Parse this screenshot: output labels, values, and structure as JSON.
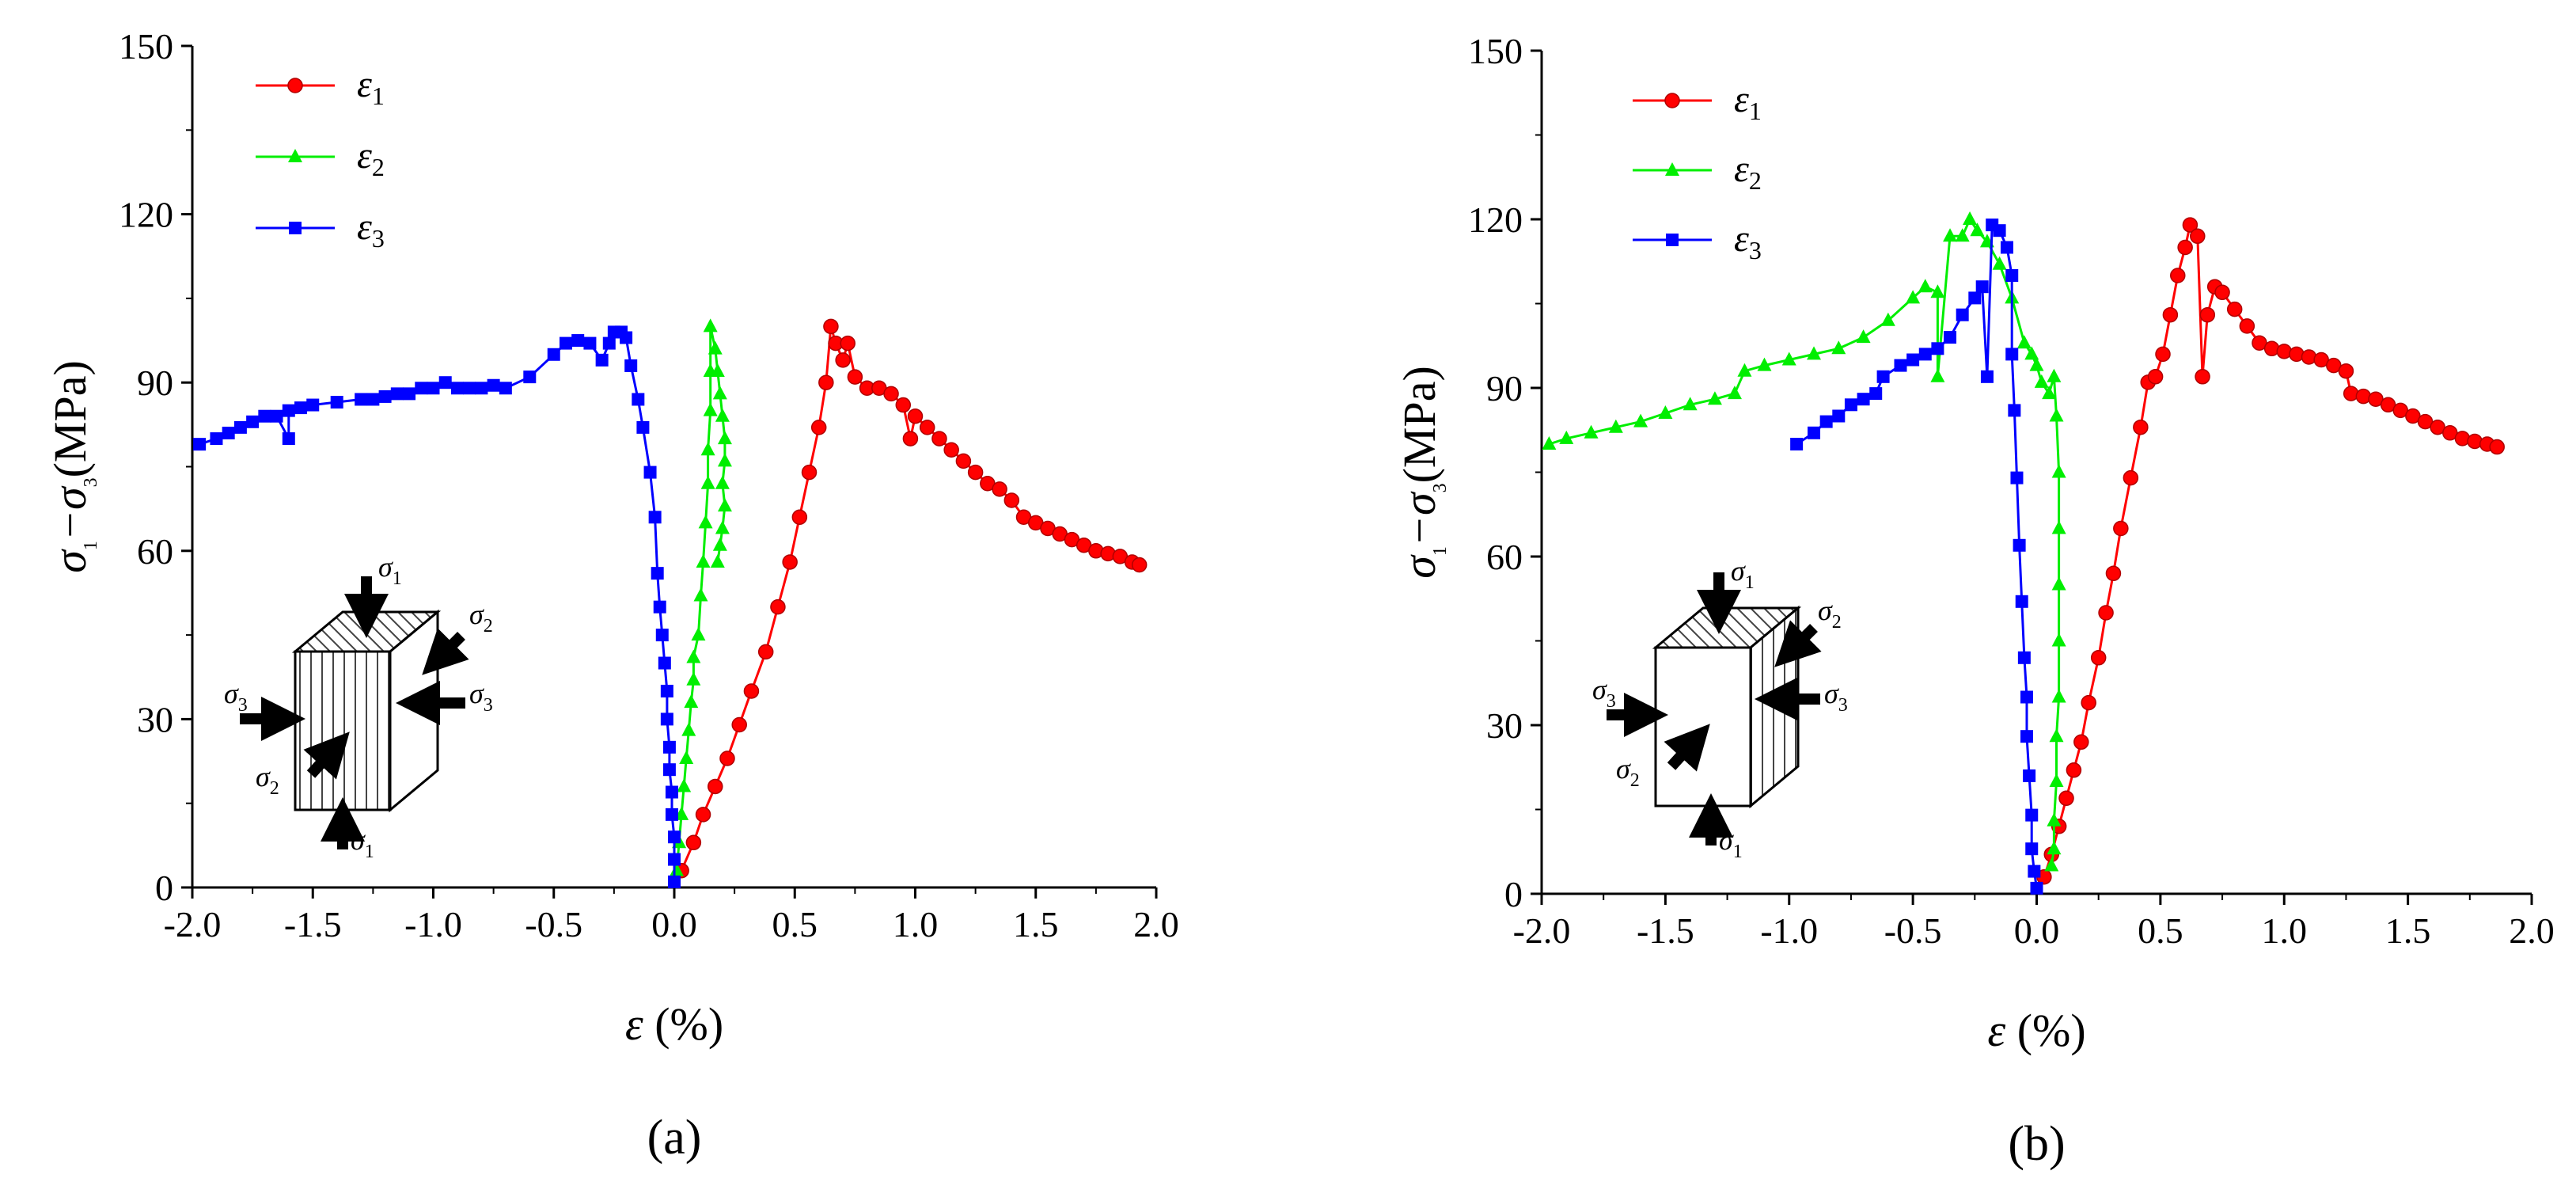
{
  "chart_data": [
    {
      "type": "line",
      "panel_label": "(a)",
      "xlabel_symbol": "ε",
      "xlabel_unit": "(%)",
      "ylabel_parts": [
        "σ",
        "1",
        "−σ",
        "3",
        "(MPa)"
      ],
      "xlim": [
        -2.0,
        2.0
      ],
      "ylim": [
        0,
        150
      ],
      "xticks": [
        "-2.0",
        "-1.5",
        "-1.0",
        "-0.5",
        "0.0",
        "0.5",
        "1.0",
        "1.5",
        "2.0"
      ],
      "yticks": [
        "0",
        "30",
        "60",
        "90",
        "120",
        "150"
      ],
      "legend": [
        {
          "name": "ε",
          "sub": "1",
          "color": "#ff0000",
          "marker": "circle"
        },
        {
          "name": "ε",
          "sub": "2",
          "color": "#00ee00",
          "marker": "triangle"
        },
        {
          "name": "ε",
          "sub": "3",
          "color": "#0000ff",
          "marker": "square"
        }
      ],
      "stress_labels": {
        "s1": "σ",
        "s2": "σ",
        "s3": "σ",
        "sub1": "1",
        "sub2": "2",
        "sub3": "3"
      },
      "series": [
        {
          "name": "ε1",
          "color": "#ff0000",
          "marker": "circle",
          "points": [
            [
              0.03,
              3
            ],
            [
              0.08,
              8
            ],
            [
              0.12,
              13
            ],
            [
              0.17,
              18
            ],
            [
              0.22,
              23
            ],
            [
              0.27,
              29
            ],
            [
              0.32,
              35
            ],
            [
              0.38,
              42
            ],
            [
              0.43,
              50
            ],
            [
              0.48,
              58
            ],
            [
              0.52,
              66
            ],
            [
              0.56,
              74
            ],
            [
              0.6,
              82
            ],
            [
              0.63,
              90
            ],
            [
              0.65,
              100
            ],
            [
              0.67,
              97
            ],
            [
              0.7,
              94
            ],
            [
              0.72,
              97
            ],
            [
              0.75,
              91
            ],
            [
              0.8,
              89
            ],
            [
              0.85,
              89
            ],
            [
              0.9,
              88
            ],
            [
              0.95,
              86
            ],
            [
              0.98,
              80
            ],
            [
              1.0,
              84
            ],
            [
              1.05,
              82
            ],
            [
              1.1,
              80
            ],
            [
              1.15,
              78
            ],
            [
              1.2,
              76
            ],
            [
              1.25,
              74
            ],
            [
              1.3,
              72
            ],
            [
              1.35,
              71
            ],
            [
              1.4,
              69
            ],
            [
              1.45,
              66
            ],
            [
              1.5,
              65
            ],
            [
              1.55,
              64
            ],
            [
              1.6,
              63
            ],
            [
              1.65,
              62
            ],
            [
              1.7,
              61
            ],
            [
              1.75,
              60
            ],
            [
              1.8,
              59.5
            ],
            [
              1.85,
              59
            ],
            [
              1.9,
              58
            ],
            [
              1.93,
              57.5
            ]
          ]
        },
        {
          "name": "ε2",
          "color": "#00ee00",
          "marker": "triangle",
          "points": [
            [
              0.01,
              3
            ],
            [
              0.02,
              8
            ],
            [
              0.03,
              13
            ],
            [
              0.04,
              18
            ],
            [
              0.05,
              23
            ],
            [
              0.06,
              28
            ],
            [
              0.07,
              33
            ],
            [
              0.08,
              37
            ],
            [
              0.08,
              41
            ],
            [
              0.1,
              45
            ],
            [
              0.11,
              52
            ],
            [
              0.12,
              58
            ],
            [
              0.13,
              65
            ],
            [
              0.14,
              72
            ],
            [
              0.14,
              78
            ],
            [
              0.15,
              85
            ],
            [
              0.15,
              92
            ],
            [
              0.15,
              100
            ],
            [
              0.17,
              96
            ],
            [
              0.18,
              92
            ],
            [
              0.19,
              88
            ],
            [
              0.2,
              84
            ],
            [
              0.21,
              80
            ],
            [
              0.21,
              76
            ],
            [
              0.2,
              72
            ],
            [
              0.21,
              68
            ],
            [
              0.2,
              64
            ],
            [
              0.19,
              61
            ],
            [
              0.18,
              58
            ]
          ]
        },
        {
          "name": "ε3",
          "color": "#0000ff",
          "marker": "square",
          "points": [
            [
              -1.97,
              79
            ],
            [
              -1.9,
              80
            ],
            [
              -1.85,
              81
            ],
            [
              -1.8,
              82
            ],
            [
              -1.75,
              83
            ],
            [
              -1.7,
              84
            ],
            [
              -1.65,
              84
            ],
            [
              -1.6,
              80
            ],
            [
              -1.6,
              85
            ],
            [
              -1.55,
              85.5
            ],
            [
              -1.5,
              86
            ],
            [
              -1.4,
              86.5
            ],
            [
              -1.3,
              87
            ],
            [
              -1.25,
              87
            ],
            [
              -1.2,
              87.5
            ],
            [
              -1.15,
              88
            ],
            [
              -1.1,
              88
            ],
            [
              -1.05,
              89
            ],
            [
              -1.0,
              89
            ],
            [
              -0.95,
              90
            ],
            [
              -0.9,
              89
            ],
            [
              -0.85,
              89
            ],
            [
              -0.8,
              89
            ],
            [
              -0.75,
              89.5
            ],
            [
              -0.7,
              89
            ],
            [
              -0.6,
              91
            ],
            [
              -0.5,
              95
            ],
            [
              -0.45,
              97
            ],
            [
              -0.4,
              97.5
            ],
            [
              -0.35,
              97
            ],
            [
              -0.3,
              94
            ],
            [
              -0.27,
              97
            ],
            [
              -0.25,
              99
            ],
            [
              -0.22,
              99
            ],
            [
              -0.2,
              98
            ],
            [
              -0.18,
              93
            ],
            [
              -0.15,
              87
            ],
            [
              -0.13,
              82
            ],
            [
              -0.1,
              74
            ],
            [
              -0.08,
              66
            ],
            [
              -0.07,
              56
            ],
            [
              -0.06,
              50
            ],
            [
              -0.05,
              45
            ],
            [
              -0.04,
              40
            ],
            [
              -0.03,
              35
            ],
            [
              -0.03,
              30
            ],
            [
              -0.02,
              25
            ],
            [
              -0.02,
              21
            ],
            [
              -0.01,
              17
            ],
            [
              -0.01,
              13
            ],
            [
              0.0,
              9
            ],
            [
              0.0,
              5
            ],
            [
              0.0,
              1
            ]
          ]
        }
      ]
    },
    {
      "type": "line",
      "panel_label": "(b)",
      "xlabel_symbol": "ε",
      "xlabel_unit": "(%)",
      "ylabel_parts": [
        "σ",
        "1",
        "−σ",
        "3",
        "(MPa)"
      ],
      "xlim": [
        -2.0,
        2.0
      ],
      "ylim": [
        0,
        150
      ],
      "xticks": [
        "-2.0",
        "-1.5",
        "-1.0",
        "-0.5",
        "0.0",
        "0.5",
        "1.0",
        "1.5",
        "2.0"
      ],
      "yticks": [
        "0",
        "30",
        "60",
        "90",
        "120",
        "150"
      ],
      "legend": [
        {
          "name": "ε",
          "sub": "1",
          "color": "#ff0000",
          "marker": "circle"
        },
        {
          "name": "ε",
          "sub": "2",
          "color": "#00ee00",
          "marker": "triangle"
        },
        {
          "name": "ε",
          "sub": "3",
          "color": "#0000ff",
          "marker": "square"
        }
      ],
      "stress_labels": {
        "s1": "σ",
        "s2": "σ",
        "s3": "σ",
        "sub1": "1",
        "sub2": "2",
        "sub3": "3"
      },
      "series": [
        {
          "name": "ε1",
          "color": "#ff0000",
          "marker": "circle",
          "points": [
            [
              0.03,
              3
            ],
            [
              0.06,
              7
            ],
            [
              0.09,
              12
            ],
            [
              0.12,
              17
            ],
            [
              0.15,
              22
            ],
            [
              0.18,
              27
            ],
            [
              0.21,
              34
            ],
            [
              0.25,
              42
            ],
            [
              0.28,
              50
            ],
            [
              0.31,
              57
            ],
            [
              0.34,
              65
            ],
            [
              0.38,
              74
            ],
            [
              0.42,
              83
            ],
            [
              0.45,
              91
            ],
            [
              0.48,
              92
            ],
            [
              0.51,
              96
            ],
            [
              0.54,
              103
            ],
            [
              0.57,
              110
            ],
            [
              0.6,
              115
            ],
            [
              0.62,
              119
            ],
            [
              0.65,
              117
            ],
            [
              0.67,
              92
            ],
            [
              0.69,
              103
            ],
            [
              0.72,
              108
            ],
            [
              0.75,
              107
            ],
            [
              0.8,
              104
            ],
            [
              0.85,
              101
            ],
            [
              0.9,
              98
            ],
            [
              0.95,
              97
            ],
            [
              1.0,
              96.5
            ],
            [
              1.05,
              96
            ],
            [
              1.1,
              95.5
            ],
            [
              1.15,
              95
            ],
            [
              1.2,
              94
            ],
            [
              1.25,
              93
            ],
            [
              1.27,
              89
            ],
            [
              1.32,
              88.5
            ],
            [
              1.37,
              88
            ],
            [
              1.42,
              87
            ],
            [
              1.47,
              86
            ],
            [
              1.52,
              85
            ],
            [
              1.57,
              84
            ],
            [
              1.62,
              83
            ],
            [
              1.67,
              82
            ],
            [
              1.72,
              81
            ],
            [
              1.77,
              80.5
            ],
            [
              1.82,
              80
            ],
            [
              1.86,
              79.5
            ]
          ]
        },
        {
          "name": "ε2",
          "color": "#00ee00",
          "marker": "triangle",
          "points": [
            [
              -1.97,
              80
            ],
            [
              -1.9,
              81
            ],
            [
              -1.8,
              82
            ],
            [
              -1.7,
              83
            ],
            [
              -1.6,
              84
            ],
            [
              -1.5,
              85.5
            ],
            [
              -1.4,
              87
            ],
            [
              -1.3,
              88
            ],
            [
              -1.22,
              89
            ],
            [
              -1.18,
              93
            ],
            [
              -1.1,
              94
            ],
            [
              -1.0,
              95
            ],
            [
              -0.9,
              96
            ],
            [
              -0.8,
              97
            ],
            [
              -0.7,
              99
            ],
            [
              -0.6,
              102
            ],
            [
              -0.5,
              106
            ],
            [
              -0.45,
              108
            ],
            [
              -0.4,
              107
            ],
            [
              -0.4,
              92
            ],
            [
              -0.35,
              117
            ],
            [
              -0.3,
              117
            ],
            [
              -0.27,
              120
            ],
            [
              -0.24,
              118
            ],
            [
              -0.2,
              116
            ],
            [
              -0.15,
              112
            ],
            [
              -0.1,
              106
            ],
            [
              -0.05,
              98
            ],
            [
              -0.02,
              96
            ],
            [
              0.0,
              94
            ],
            [
              0.02,
              91
            ],
            [
              0.05,
              89
            ],
            [
              0.07,
              92
            ],
            [
              0.08,
              85
            ],
            [
              0.09,
              75
            ],
            [
              0.09,
              65
            ],
            [
              0.09,
              55
            ],
            [
              0.09,
              45
            ],
            [
              0.09,
              35
            ],
            [
              0.08,
              28
            ],
            [
              0.08,
              20
            ],
            [
              0.07,
              13
            ],
            [
              0.07,
              8
            ],
            [
              0.06,
              5
            ]
          ]
        },
        {
          "name": "ε3",
          "color": "#0000ff",
          "marker": "square",
          "points": [
            [
              -0.97,
              80
            ],
            [
              -0.9,
              82
            ],
            [
              -0.85,
              84
            ],
            [
              -0.8,
              85
            ],
            [
              -0.75,
              87
            ],
            [
              -0.7,
              88
            ],
            [
              -0.65,
              89
            ],
            [
              -0.62,
              92
            ],
            [
              -0.55,
              94
            ],
            [
              -0.5,
              95
            ],
            [
              -0.45,
              96
            ],
            [
              -0.4,
              97
            ],
            [
              -0.35,
              99
            ],
            [
              -0.3,
              103
            ],
            [
              -0.25,
              106
            ],
            [
              -0.22,
              108
            ],
            [
              -0.2,
              92
            ],
            [
              -0.18,
              119
            ],
            [
              -0.15,
              118
            ],
            [
              -0.12,
              115
            ],
            [
              -0.1,
              110
            ],
            [
              -0.1,
              96
            ],
            [
              -0.09,
              86
            ],
            [
              -0.08,
              74
            ],
            [
              -0.07,
              62
            ],
            [
              -0.06,
              52
            ],
            [
              -0.05,
              42
            ],
            [
              -0.04,
              35
            ],
            [
              -0.04,
              28
            ],
            [
              -0.03,
              21
            ],
            [
              -0.02,
              14
            ],
            [
              -0.02,
              8
            ],
            [
              -0.01,
              4
            ],
            [
              0.0,
              1
            ]
          ]
        }
      ]
    }
  ]
}
